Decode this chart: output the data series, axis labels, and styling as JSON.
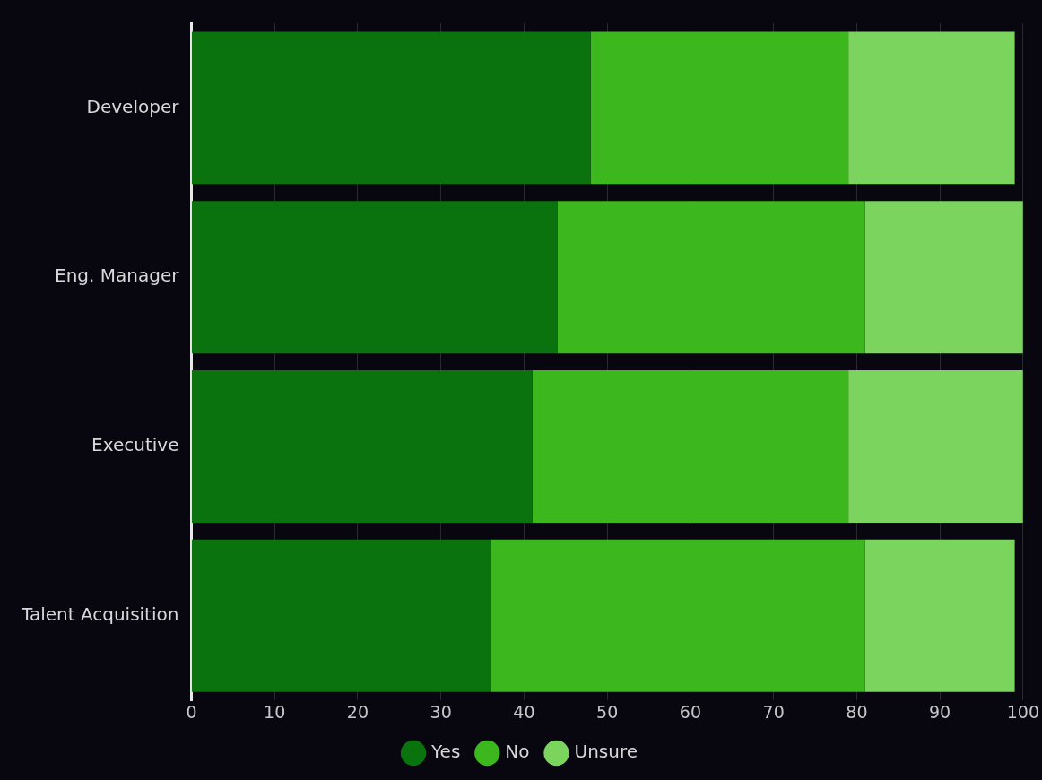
{
  "chart_data": {
    "type": "bar",
    "orientation": "horizontal",
    "stacked": true,
    "categories": [
      "Developer",
      "Eng. Manager",
      "Executive",
      "Talent Acquisition"
    ],
    "series": [
      {
        "name": "Yes",
        "color": "#0a730e",
        "values": [
          48,
          44,
          41,
          36
        ]
      },
      {
        "name": "No",
        "color": "#3cb71e",
        "values": [
          31,
          37,
          38,
          45
        ]
      },
      {
        "name": "Unsure",
        "color": "#7bd45d",
        "values": [
          20,
          19,
          21,
          18
        ]
      }
    ],
    "xlim": [
      0,
      100
    ],
    "xticks": [
      0,
      10,
      20,
      30,
      40,
      50,
      60,
      70,
      80,
      90,
      100
    ],
    "grid": "x",
    "legend": "bottom"
  }
}
